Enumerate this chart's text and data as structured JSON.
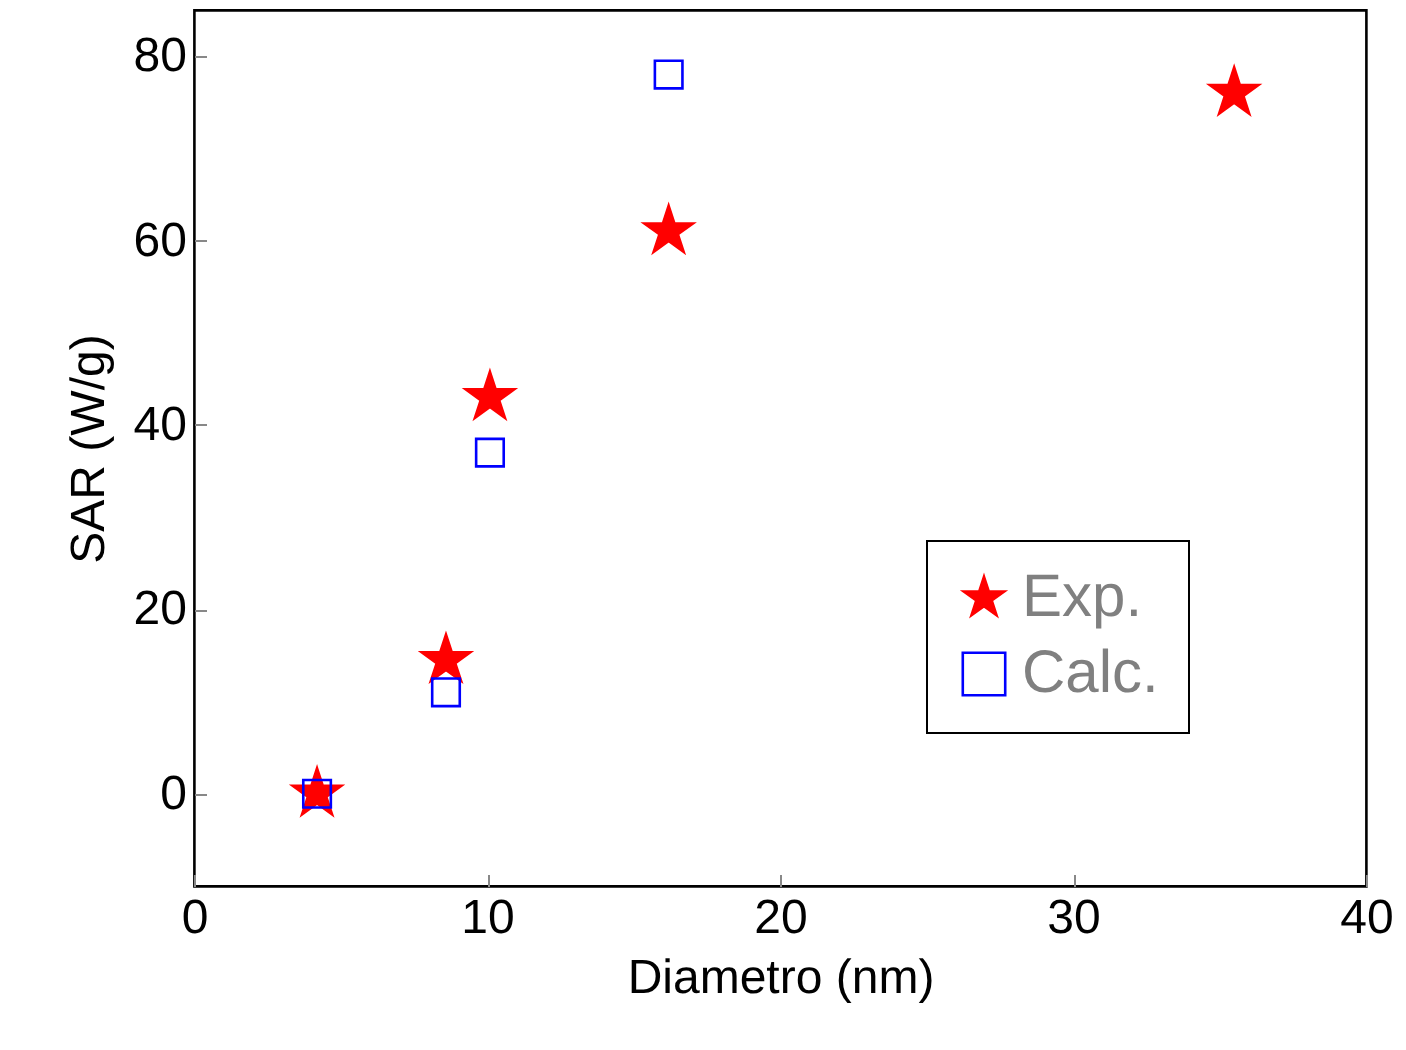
{
  "chart_data": {
    "type": "scatter",
    "xlabel": "Diametro (nm)",
    "ylabel": "SAR (W/g)",
    "xlim": [
      0,
      40
    ],
    "xticks": [
      0,
      10,
      20,
      30,
      40
    ],
    "ylim": [
      -10,
      85
    ],
    "yticks": [
      0,
      20,
      40,
      60,
      80
    ],
    "grid": false,
    "legend": "bottom right",
    "series": [
      {
        "name": "Exp.",
        "color": "#ff0000",
        "marker": "star",
        "x": [
          4.2,
          8.6,
          10.1,
          16.2,
          35.5
        ],
        "values": [
          0,
          14.5,
          43,
          61,
          76
        ]
      },
      {
        "name": "Calc.",
        "color": "#0000ff",
        "marker": "square",
        "x": [
          4.2,
          8.6,
          10.1,
          16.2
        ],
        "values": [
          0,
          11,
          37,
          78
        ]
      }
    ]
  }
}
